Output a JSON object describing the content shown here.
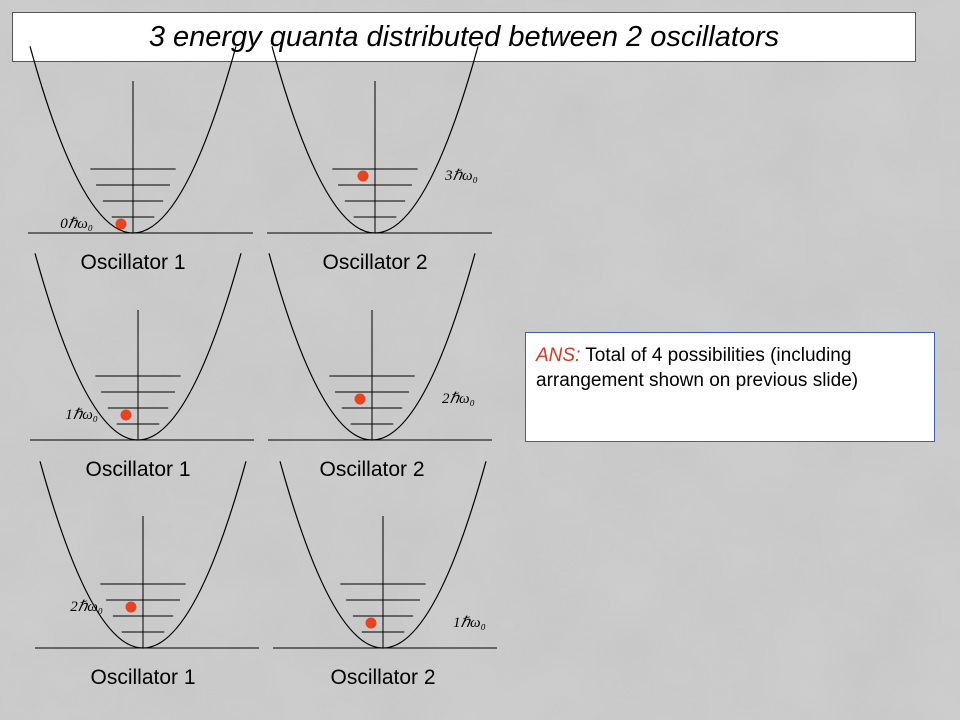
{
  "title": "3 energy quanta distributed between 2 oscillators",
  "answer": {
    "prefix": "ANS:",
    "text": " Total of 4 possibilities (including arrangement shown on previous slide)"
  },
  "colors": {
    "dot": "#e8421e",
    "answer_border": "#3a5fb8",
    "answer_prefix": "#e0321e"
  },
  "rows": [
    {
      "oscillators": [
        {
          "label": "Oscillator 1",
          "energy_label": "0ℏω₀",
          "level": 0
        },
        {
          "label": "Oscillator 2",
          "energy_label": "3ℏω₀",
          "level": 3
        }
      ]
    },
    {
      "oscillators": [
        {
          "label": "Oscillator 1",
          "energy_label": "1ℏω₀",
          "level": 1
        },
        {
          "label": "Oscillator 2",
          "energy_label": "2ℏω₀",
          "level": 2
        }
      ]
    },
    {
      "oscillators": [
        {
          "label": "Oscillator 1",
          "energy_label": "2ℏω₀",
          "level": 2
        },
        {
          "label": "Oscillator 2",
          "energy_label": "1ℏω₀",
          "level": 1
        }
      ]
    }
  ]
}
